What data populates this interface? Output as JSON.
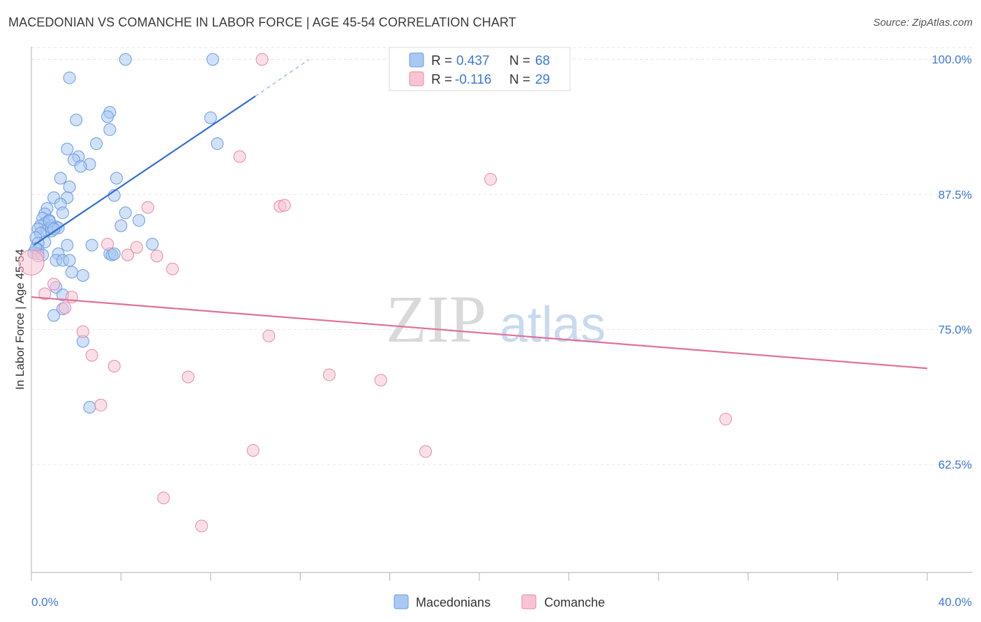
{
  "title": "MACEDONIAN VS COMANCHE IN LABOR FORCE | AGE 45-54 CORRELATION CHART",
  "source": "Source: ZipAtlas.com",
  "watermark": {
    "zip": "ZIP",
    "atlas": "atlas"
  },
  "legend": {
    "r_label": "R =",
    "n_label": "N =",
    "rows": [
      {
        "r": "0.437",
        "n": "68",
        "color": "#a9c8f2",
        "stroke": "#6b9be0"
      },
      {
        "r": "-0.116",
        "n": "29",
        "color": "#f8c4d4",
        "stroke": "#e48aa7"
      }
    ]
  },
  "bottom_legend": [
    "Macedonians",
    "Comanche"
  ],
  "chart_data": {
    "type": "scatter",
    "title": "MACEDONIAN VS COMANCHE IN LABOR FORCE | AGE 45-54 CORRELATION CHART",
    "xlabel": "",
    "ylabel": "In Labor Force | Age 45-54",
    "xlim": [
      0,
      40
    ],
    "ylim": [
      52.5,
      101.5
    ],
    "x_tick_labels": [
      "0.0%",
      "40.0%"
    ],
    "y_ticks": [
      62.5,
      75.0,
      87.5,
      100.0
    ],
    "y_tick_labels": [
      "62.5%",
      "75.0%",
      "87.5%",
      "100.0%"
    ],
    "grid": true,
    "colors": {
      "Macedonians": "#3d78d6",
      "Comanche": "#e0709a"
    },
    "series": [
      {
        "name": "Macedonians",
        "trend": {
          "x": [
            0.1,
            10.0
          ],
          "y": [
            82.8,
            96.6
          ],
          "dashed_to": [
            12.4,
            100.0
          ]
        },
        "points": [
          [
            4.2,
            100.0
          ],
          [
            8.1,
            100.0
          ],
          [
            1.7,
            98.3
          ],
          [
            3.5,
            95.1
          ],
          [
            3.4,
            94.7
          ],
          [
            2.0,
            94.4
          ],
          [
            8.0,
            94.6
          ],
          [
            3.5,
            93.5
          ],
          [
            2.9,
            92.2
          ],
          [
            1.6,
            91.7
          ],
          [
            2.1,
            91.0
          ],
          [
            1.9,
            90.7
          ],
          [
            8.3,
            92.2
          ],
          [
            2.6,
            90.3
          ],
          [
            2.2,
            90.1
          ],
          [
            3.8,
            89.0
          ],
          [
            1.3,
            89.0
          ],
          [
            1.7,
            88.2
          ],
          [
            1.0,
            87.2
          ],
          [
            1.6,
            87.2
          ],
          [
            3.7,
            87.4
          ],
          [
            1.3,
            86.6
          ],
          [
            0.7,
            86.2
          ],
          [
            4.2,
            85.8
          ],
          [
            0.6,
            85.7
          ],
          [
            1.4,
            85.8
          ],
          [
            0.5,
            85.3
          ],
          [
            0.8,
            85.1
          ],
          [
            4.8,
            85.1
          ],
          [
            0.6,
            84.8
          ],
          [
            0.4,
            84.6
          ],
          [
            0.9,
            84.6
          ],
          [
            1.1,
            84.5
          ],
          [
            0.3,
            84.3
          ],
          [
            0.7,
            84.2
          ],
          [
            0.9,
            84.1
          ],
          [
            4.0,
            84.6
          ],
          [
            0.4,
            83.9
          ],
          [
            0.2,
            83.5
          ],
          [
            0.6,
            83.1
          ],
          [
            0.3,
            83.0
          ],
          [
            1.6,
            82.8
          ],
          [
            2.7,
            82.8
          ],
          [
            5.4,
            82.9
          ],
          [
            0.3,
            82.4
          ],
          [
            0.1,
            82.1
          ],
          [
            0.3,
            82.0
          ],
          [
            1.2,
            82.0
          ],
          [
            3.5,
            82.0
          ],
          [
            3.6,
            81.9
          ],
          [
            3.7,
            82.0
          ],
          [
            1.1,
            81.4
          ],
          [
            1.4,
            81.4
          ],
          [
            1.7,
            81.4
          ],
          [
            1.8,
            80.3
          ],
          [
            2.3,
            80.0
          ],
          [
            1.1,
            78.9
          ],
          [
            1.4,
            78.2
          ],
          [
            1.4,
            76.9
          ],
          [
            1.0,
            76.3
          ],
          [
            2.3,
            73.9
          ],
          [
            2.6,
            67.8
          ],
          [
            0.2,
            82.5
          ],
          [
            0.9,
            84.4
          ],
          [
            1.2,
            84.4
          ],
          [
            0.5,
            81.9
          ],
          [
            0.8,
            85.0
          ],
          [
            1.0,
            84.3
          ]
        ]
      },
      {
        "name": "Comanche",
        "trend": {
          "x": [
            0.0,
            40.0
          ],
          "y": [
            78.0,
            71.4
          ]
        },
        "points": [
          [
            10.3,
            100.0
          ],
          [
            9.3,
            91.0
          ],
          [
            20.5,
            88.9
          ],
          [
            11.1,
            86.4
          ],
          [
            11.3,
            86.5
          ],
          [
            5.2,
            86.3
          ],
          [
            3.4,
            82.9
          ],
          [
            4.7,
            82.6
          ],
          [
            5.6,
            81.8
          ],
          [
            4.3,
            81.9
          ],
          [
            0.3,
            81.8
          ],
          [
            6.3,
            80.6
          ],
          [
            1.0,
            79.2
          ],
          [
            0.6,
            78.3
          ],
          [
            1.8,
            78.0
          ],
          [
            1.5,
            77.0
          ],
          [
            2.3,
            74.8
          ],
          [
            10.6,
            74.4
          ],
          [
            2.7,
            72.6
          ],
          [
            3.7,
            71.6
          ],
          [
            7.0,
            70.6
          ],
          [
            13.3,
            70.8
          ],
          [
            15.6,
            70.3
          ],
          [
            3.1,
            68.0
          ],
          [
            31.0,
            66.7
          ],
          [
            9.9,
            63.8
          ],
          [
            17.6,
            63.7
          ],
          [
            5.9,
            59.4
          ],
          [
            7.6,
            56.8
          ]
        ]
      }
    ]
  }
}
